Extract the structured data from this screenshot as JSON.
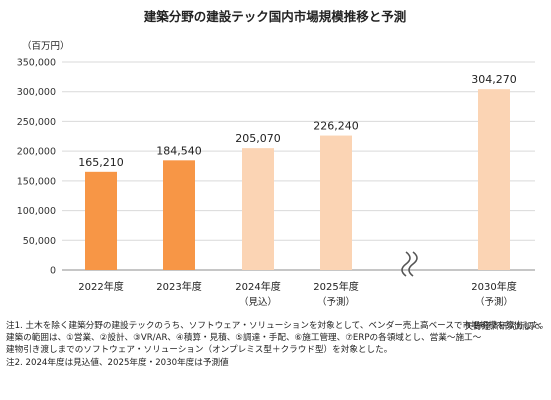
{
  "chart_data": {
    "type": "bar",
    "title": "建築分野の建設テック国内市場規模推移と予測",
    "unit_label": "（百万円）",
    "categories": [
      "2022年度",
      "2023年度",
      "2024年度",
      "2025年度",
      "2030年度"
    ],
    "category_notes": [
      "",
      "",
      "（見込）",
      "（予測）",
      "（予測）"
    ],
    "values": [
      165210,
      184540,
      205070,
      226240,
      304270
    ],
    "value_labels": [
      "165,210",
      "184,540",
      "205,070",
      "226,240",
      "304,270"
    ],
    "bar_colors": [
      "#F79646",
      "#F79646",
      "#FBD4B4",
      "#FBD4B4",
      "#FBD4B4"
    ],
    "ylim": [
      0,
      350000
    ],
    "yticks": [
      0,
      50000,
      100000,
      150000,
      200000,
      250000,
      300000,
      350000
    ],
    "ytick_labels": [
      "0",
      "50,000",
      "100,000",
      "150,000",
      "200,000",
      "250,000",
      "300,000",
      "350,000"
    ],
    "grid": true,
    "axis_break_between": [
      "2025年度",
      "2030年度"
    ],
    "legend": "none"
  },
  "notes": {
    "source": "矢野経済研究所調べ",
    "note1_line1": "注1.  土木を除く建築分野の建設テックのうち、ソフトウェア・ソリューションを対象として、ベンダー売上高ベースで市場規模を算出した。",
    "note1_line2": "建築の範囲は、①営業、②設計、③VR/AR、④積算・見積、⑤調達・手配、⑥施工管理、⑦ERPの各領域とし、営業～施工～",
    "note1_line3": "建物引き渡しまでのソフトウェア・ソリューション（オンプレミス型＋クラウド型）を対象とした。",
    "note2": "注2.  2024年度は見込値、2025年度・2030年度は予測値"
  }
}
